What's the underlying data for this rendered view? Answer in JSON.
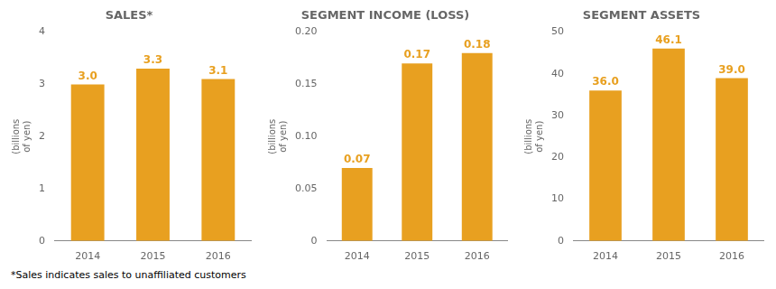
{
  "chart_data": [
    {
      "type": "bar",
      "title": "SALES*",
      "ylabel": "(billions\nof yen)",
      "categories": [
        "2014",
        "2015",
        "2016"
      ],
      "values": [
        3.0,
        3.3,
        3.1
      ],
      "value_labels": [
        "3.0",
        "3.3",
        "3.1"
      ],
      "data_labels": true,
      "color": "#E8A020",
      "ylim": [
        0,
        4
      ],
      "yticks": [
        0,
        1,
        2,
        3,
        4
      ],
      "grid": false
    },
    {
      "type": "bar",
      "title": "SEGMENT INCOME (LOSS)",
      "ylabel": "(billions\nof yen)",
      "categories": [
        "2014",
        "2015",
        "2016"
      ],
      "values": [
        0.07,
        0.17,
        0.18
      ],
      "value_labels": [
        "0.07",
        "0.17",
        "0.18"
      ],
      "data_labels": true,
      "color": "#E8A020",
      "ylim": [
        0,
        0.2
      ],
      "yticks": [
        0,
        0.05,
        {
          "value": 0.1,
          "label": "0.10"
        },
        0.15,
        {
          "value": 0.2,
          "label": "0.20"
        }
      ],
      "grid": false
    },
    {
      "type": "bar",
      "title": "SEGMENT ASSETS",
      "ylabel": "(billions\nof yen)",
      "categories": [
        "2014",
        "2015",
        "2016"
      ],
      "values": [
        36.0,
        46.1,
        39.0
      ],
      "value_labels": [
        "36.0",
        "46.1",
        "39.0"
      ],
      "data_labels": true,
      "color": "#E8A020",
      "ylim": [
        0,
        50
      ],
      "yticks": [
        0,
        10,
        20,
        30,
        40,
        50
      ],
      "grid": false
    }
  ],
  "footnote": "*Sales indicates sales to unaffiliated customers"
}
